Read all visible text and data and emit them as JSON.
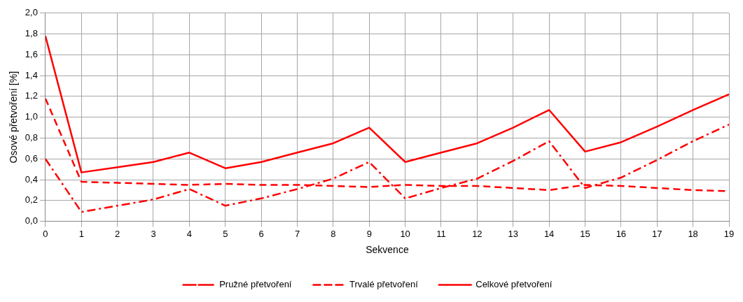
{
  "chart_data": {
    "type": "line",
    "xlabel": "Sekvence",
    "ylabel": "Osové přetvoření [%]",
    "x": [
      0,
      1,
      2,
      3,
      4,
      5,
      6,
      7,
      8,
      9,
      10,
      11,
      12,
      13,
      14,
      15,
      16,
      17,
      18,
      19
    ],
    "xlim": [
      0,
      19
    ],
    "xticks": [
      0,
      1,
      2,
      3,
      4,
      5,
      6,
      7,
      8,
      9,
      10,
      11,
      12,
      13,
      14,
      15,
      16,
      17,
      18,
      19
    ],
    "ylim": [
      0,
      2
    ],
    "yticks": [
      {
        "value": 0,
        "label": "0,0"
      },
      {
        "value": 0.2,
        "label": "0,2"
      },
      {
        "value": 0.4,
        "label": "0,4"
      },
      {
        "value": 0.6,
        "label": "0,6"
      },
      {
        "value": 0.8,
        "label": "0,8"
      },
      {
        "value": 1,
        "label": "1,0"
      },
      {
        "value": 1.2,
        "label": "1,2"
      },
      {
        "value": 1.4,
        "label": "1,4"
      },
      {
        "value": 1.6,
        "label": "1,6"
      },
      {
        "value": 1.8,
        "label": "1,8"
      },
      {
        "value": 2,
        "label": "2,0"
      }
    ],
    "grid": true,
    "legend": "bottom",
    "marker": "none",
    "series": [
      {
        "name": "Pružné přetvoření",
        "color": "#ff0000",
        "line_style": "dashdot",
        "values": [
          0.6,
          0.09,
          0.15,
          0.21,
          0.31,
          0.15,
          0.22,
          0.31,
          0.41,
          0.57,
          0.22,
          0.32,
          0.41,
          0.58,
          0.77,
          0.32,
          0.42,
          0.59,
          0.77,
          0.93
        ]
      },
      {
        "name": "Trvalé přetvoření",
        "color": "#ff0000",
        "line_style": "dashed",
        "values": [
          1.18,
          0.38,
          0.37,
          0.36,
          0.35,
          0.36,
          0.35,
          0.35,
          0.34,
          0.33,
          0.35,
          0.34,
          0.34,
          0.32,
          0.3,
          0.35,
          0.34,
          0.32,
          0.3,
          0.29
        ]
      },
      {
        "name": "Celkové přetvoření",
        "color": "#ff0000",
        "line_style": "solid",
        "values": [
          1.78,
          0.47,
          0.52,
          0.57,
          0.66,
          0.51,
          0.57,
          0.66,
          0.75,
          0.9,
          0.57,
          0.66,
          0.75,
          0.9,
          1.07,
          0.67,
          0.76,
          0.91,
          1.07,
          1.22
        ]
      }
    ]
  }
}
